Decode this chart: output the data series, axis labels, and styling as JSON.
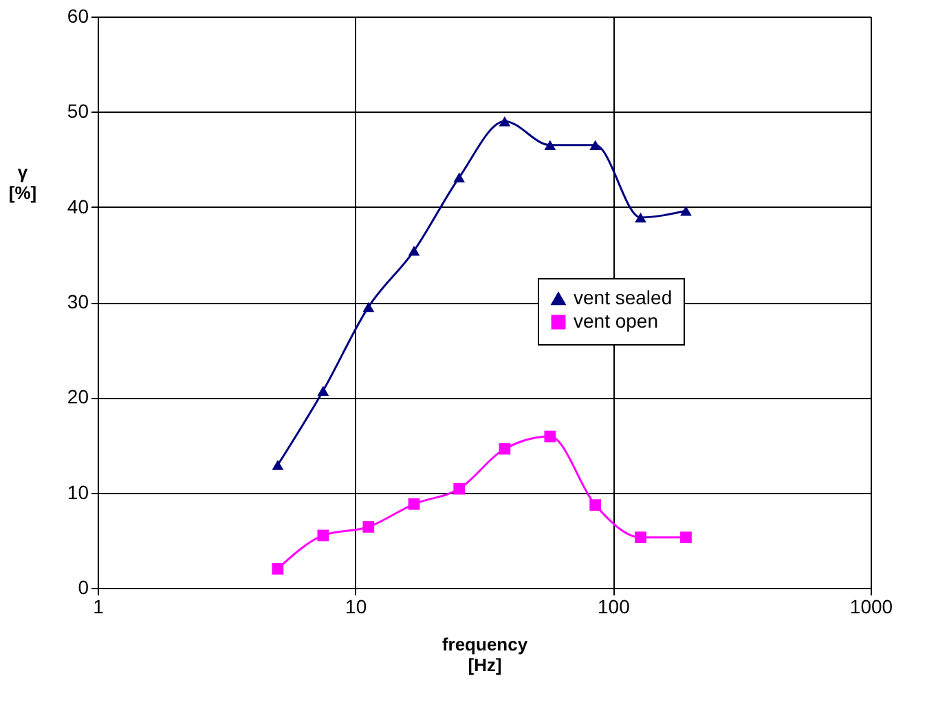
{
  "chart_data": {
    "type": "line",
    "xlabel": "frequency [Hz]",
    "ylabel": "γ [%]",
    "x": [
      5,
      7.5,
      11.25,
      16.9,
      25.3,
      38,
      57,
      85.4,
      128,
      192
    ],
    "series": [
      {
        "name": "vent sealed",
        "color": "#000080",
        "marker": "triangle",
        "values": [
          12.9,
          20.7,
          29.5,
          35.4,
          43.1,
          49,
          46.5,
          46.5,
          38.9,
          39.6
        ]
      },
      {
        "name": "vent open",
        "color": "#ff00ff",
        "marker": "square",
        "values": [
          2.0,
          5.5,
          6.4,
          8.8,
          10.4,
          14.6,
          15.9,
          8.7,
          5.3,
          5.3
        ]
      }
    ],
    "log": "x",
    "xlim": [
      1,
      1000
    ],
    "xticks": [
      1,
      10,
      100,
      1000
    ],
    "ylim": [
      0,
      60
    ],
    "yticks": [
      0,
      10,
      20,
      30,
      40,
      50,
      60
    ],
    "grid": true,
    "legend": "right",
    "line_style": "solid"
  }
}
